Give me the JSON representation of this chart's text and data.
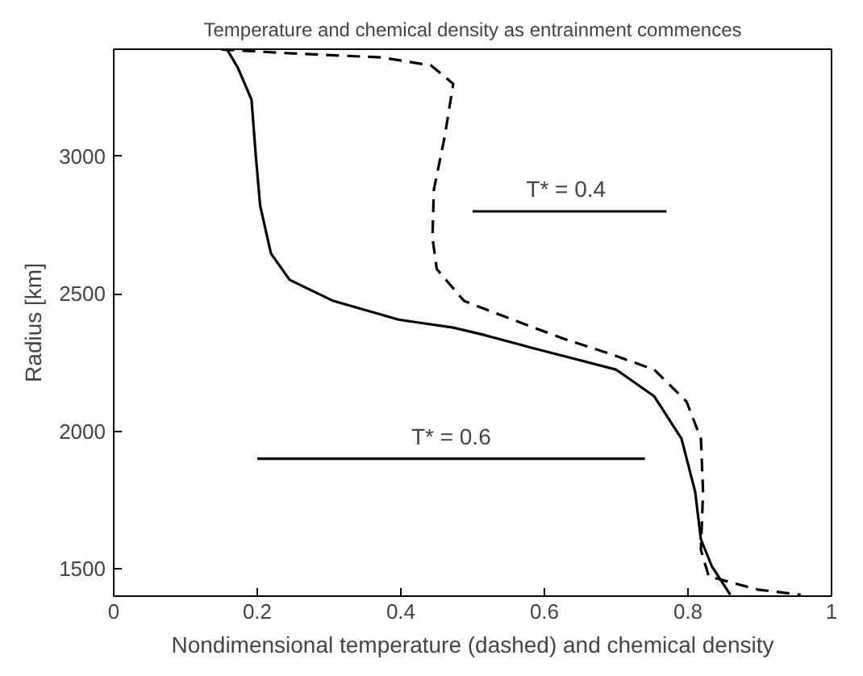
{
  "chart_data": {
    "type": "line",
    "title": "Temperature and chemical density as entrainment commences",
    "xlabel": "Nondimensional temperature (dashed) and chemical density",
    "ylabel": "Radius [km]",
    "xlim": [
      0,
      1
    ],
    "ylim": [
      1400,
      3390
    ],
    "xticks": [
      0,
      0.2,
      0.4,
      0.6,
      0.8,
      1
    ],
    "yticks": [
      1500,
      2000,
      2500,
      3000
    ],
    "grid": false,
    "series": [
      {
        "color": "#000000",
        "line_style": "solid",
        "x": [
          0.158,
          0.173,
          0.192,
          0.198,
          0.204,
          0.219,
          0.245,
          0.306,
          0.397,
          0.473,
          0.518,
          0.586,
          0.7,
          0.753,
          0.791,
          0.81,
          0.818,
          0.833,
          0.859
        ],
        "values": [
          3389,
          3322,
          3206,
          3000,
          2821,
          2647,
          2551,
          2474,
          2406,
          2377,
          2349,
          2301,
          2224,
          2127,
          1973,
          1780,
          1607,
          1510,
          1405
        ]
      },
      {
        "color": "#000000",
        "line_style": "dashed",
        "x": [
          0.15,
          0.238,
          0.374,
          0.442,
          0.473,
          0.461,
          0.446,
          0.444,
          0.45,
          0.488,
          0.556,
          0.624,
          0.692,
          0.753,
          0.798,
          0.818,
          0.821,
          0.818,
          0.829,
          0.897,
          0.957
        ],
        "values": [
          3389,
          3376,
          3360,
          3331,
          3264,
          3071,
          2879,
          2705,
          2590,
          2474,
          2406,
          2339,
          2281,
          2224,
          2108,
          1973,
          1780,
          1568,
          1472,
          1424,
          1405
        ]
      },
      {
        "color": "#000000",
        "line_style": "solid",
        "x": [
          0.5,
          0.77
        ],
        "values": [
          2800,
          2800
        ]
      },
      {
        "color": "#000000",
        "line_style": "solid",
        "x": [
          0.2,
          0.74
        ],
        "values": [
          1900,
          1900
        ]
      }
    ],
    "annotations": [
      {
        "text": "T* = 0.4",
        "x": 0.63,
        "y": 2800
      },
      {
        "text": "T* = 0.6",
        "x": 0.47,
        "y": 1900
      }
    ]
  }
}
